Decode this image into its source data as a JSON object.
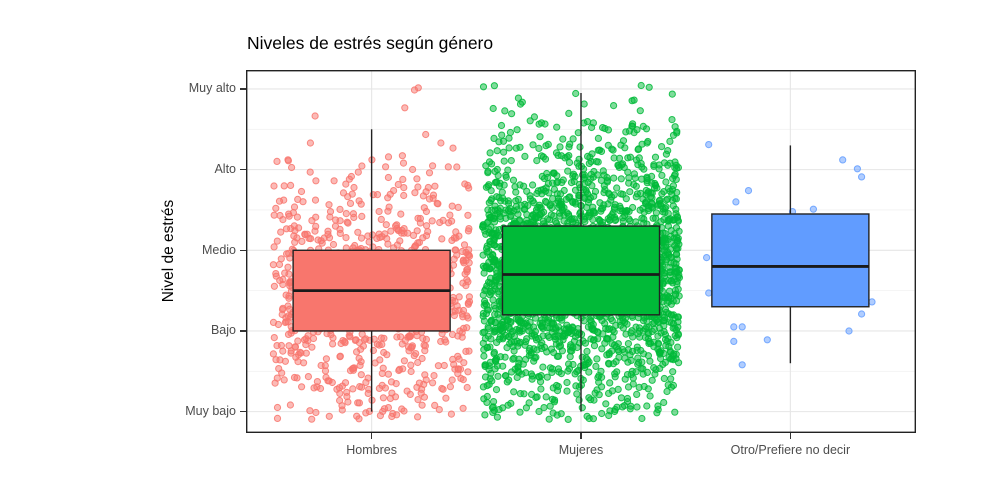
{
  "chart_data": {
    "type": "boxplot",
    "subtype": "boxplot-with-jittered-points",
    "title": "Niveles de estrés según género",
    "xlabel": "",
    "ylabel": "Nivel de estrés",
    "categories": [
      "Hombres",
      "Mujeres",
      "Otro/Prefiere no decir"
    ],
    "y_ticks": [
      {
        "value": 1,
        "label": "Muy bajo"
      },
      {
        "value": 2,
        "label": "Bajo"
      },
      {
        "value": 3,
        "label": "Medio"
      },
      {
        "value": 4,
        "label": "Alto"
      },
      {
        "value": 5,
        "label": "Muy alto"
      }
    ],
    "ylim": [
      0.735,
      5.235
    ],
    "xlim_units": [
      0.4,
      3.6
    ],
    "grid": {
      "major_color": "#e6e6e6",
      "minor_color": "#f2f2f2",
      "major_on": true,
      "minor_on": true
    },
    "panel_border_color": "#222222",
    "axis_text_color": "#4d4d4d",
    "title_color": "#000000",
    "legend": "none",
    "series": [
      {
        "name": "Hombres",
        "color": "#F8766D",
        "box": {
          "whisker_low": 1.0,
          "q1": 2.0,
          "median": 2.5,
          "q3": 3.0,
          "whisker_high": 4.5
        },
        "jitter_cloud": {
          "n": 850,
          "mean": 2.52,
          "sd": 0.75,
          "min": 1,
          "max": 5,
          "seed": 101
        }
      },
      {
        "name": "Mujeres",
        "color": "#00BA38",
        "box": {
          "whisker_low": 1.0,
          "q1": 2.2,
          "median": 2.7,
          "q3": 3.3,
          "whisker_high": 4.95
        },
        "jitter_cloud": {
          "n": 2300,
          "mean": 2.72,
          "sd": 0.82,
          "min": 1,
          "max": 5,
          "seed": 202
        }
      },
      {
        "name": "Otro/Prefiere no decir",
        "color": "#619CFF",
        "box": {
          "whisker_low": 1.6,
          "q1": 2.3,
          "median": 2.8,
          "q3": 3.45,
          "whisker_high": 4.3
        },
        "points": [
          [
            -0.39,
            4.31
          ],
          [
            0.25,
            4.12
          ],
          [
            0.32,
            4.01
          ],
          [
            0.34,
            3.91
          ],
          [
            -0.2,
            3.74
          ],
          [
            -0.26,
            3.6
          ],
          [
            0.01,
            3.48
          ],
          [
            0.11,
            3.51
          ],
          [
            -0.4,
            2.91
          ],
          [
            -0.39,
            2.47
          ],
          [
            0.39,
            2.36
          ],
          [
            0.34,
            2.21
          ],
          [
            -0.23,
            2.05
          ],
          [
            -0.27,
            2.05
          ],
          [
            0.28,
            2.0
          ],
          [
            -0.11,
            1.89
          ],
          [
            -0.27,
            1.87
          ],
          [
            -0.23,
            1.58
          ]
        ]
      }
    ],
    "style": {
      "box_width_units": 0.75,
      "jitter_width_units": 0.47,
      "jitter_height_units": 0.1,
      "point_radius": 3.1,
      "point_fill_opacity": 0.5,
      "point_stroke_opacity": 0.85,
      "box_line_color": "#222222",
      "median_line_color": "#1a1a1a"
    }
  }
}
